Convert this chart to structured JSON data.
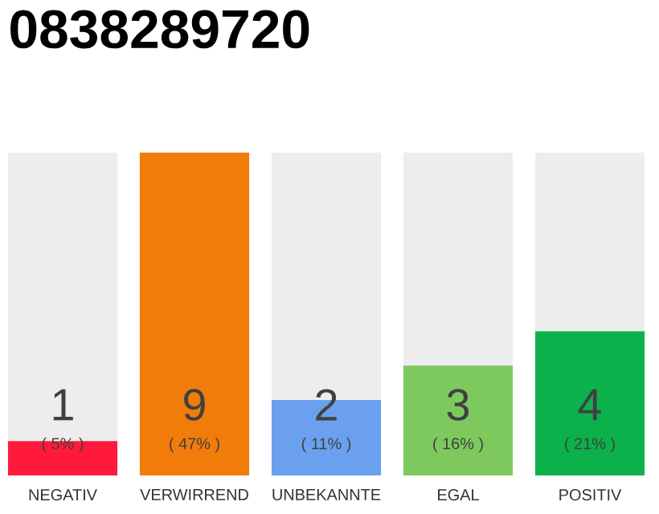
{
  "chart_data": {
    "type": "bar",
    "title": "0838289720",
    "categories": [
      "NEGATIV",
      "VERWIRREND",
      "UNBEKANNTE",
      "EGAL",
      "POSITIV"
    ],
    "values": [
      5,
      47,
      11,
      16,
      21
    ],
    "colors": [
      "#ff1a3c",
      "#f27c0a",
      "#6aa0ee",
      "#7dc95e",
      "#0cb14b"
    ],
    "value_labels": [
      "( 5% )",
      "( 47% )",
      "( 11% )",
      "( 16% )",
      "( 21% )"
    ],
    "annotations": [
      "1",
      "9",
      "2",
      "3",
      "4"
    ]
  }
}
